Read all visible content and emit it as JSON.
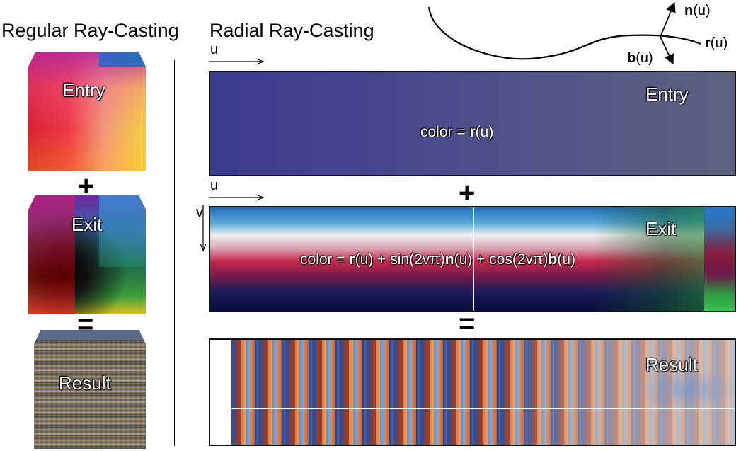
{
  "headings": {
    "regular": "Regular Ray-Casting",
    "radial": "Radial Ray-Casting"
  },
  "left_column": {
    "entry_label": "Entry",
    "exit_label": "Exit",
    "result_label": "Result",
    "plus_symbol": "+",
    "equals_symbol": "="
  },
  "curve": {
    "n_bold": "n",
    "b_bold": "b",
    "r_bold": "r",
    "arg": "(u)"
  },
  "axes": {
    "u_top": "u",
    "u_mid": "u",
    "v": "v"
  },
  "panels": {
    "entry_label": "Entry",
    "exit_label": "Exit",
    "result_label": "Result",
    "plus_symbol": "+",
    "equals_symbol": "=",
    "entry_formula": {
      "prefix": "color = ",
      "r": "r",
      "r_arg": "(u)"
    },
    "exit_formula": {
      "prefix": "color = ",
      "r": "r",
      "r_arg": "(u) + sin(2vπ)",
      "n": "n",
      "n_arg": "(u) + cos(2vπ)",
      "b": "b",
      "b_arg": "(u)"
    }
  },
  "colors": {
    "entry_left": "#3d3d8a",
    "entry_right": "#5e6080",
    "exit_blue": "#1f6fb8",
    "exit_white": "#f0f0ee",
    "exit_red": "#c8284a",
    "exit_navy": "#0a0f3a",
    "result_orange": "#e07a3c",
    "result_blue": "#5b8fcf"
  }
}
